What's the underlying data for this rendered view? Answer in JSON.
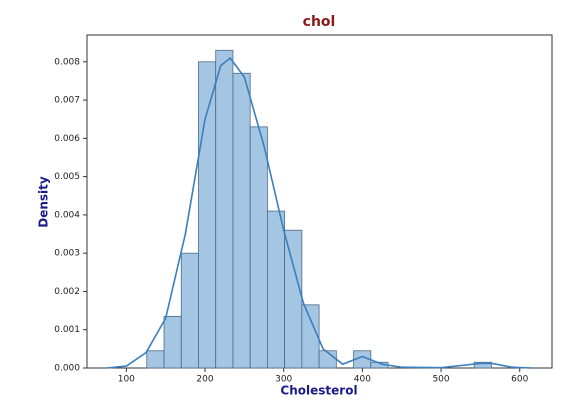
{
  "chart_data": {
    "type": "histogram",
    "title": "chol",
    "xlabel": "Cholesterol",
    "ylabel": "Density",
    "bins": [
      126,
      147.9,
      169.8,
      191.7,
      213.6,
      235.5,
      257.4,
      279.3,
      301.2,
      323.1,
      345,
      366.9,
      388.8,
      410.7,
      432.6,
      454.5,
      476.4,
      498.3,
      520.2,
      542.1,
      564
    ],
    "values": [
      0.00045,
      0.00135,
      0.003,
      0.008,
      0.0083,
      0.0077,
      0.0063,
      0.0041,
      0.0036,
      0.00165,
      0.00045,
      0,
      0.00045,
      0.00015,
      0,
      0,
      0,
      0,
      0,
      0.00015
    ],
    "color": "#a5c6e2",
    "kde": {
      "color": "#3a7fc0",
      "x": [
        75,
        100,
        125,
        150,
        175,
        200,
        220,
        232,
        250,
        275,
        300,
        325,
        350,
        375,
        400,
        425,
        450,
        500,
        550,
        565,
        590,
        615
      ],
      "y": [
        0,
        5e-05,
        0.0004,
        0.0013,
        0.0035,
        0.0065,
        0.0079,
        0.0081,
        0.0076,
        0.0058,
        0.0036,
        0.0017,
        0.0005,
        0.0001,
        0.0003,
        0.0001,
        2e-05,
        1e-05,
        0.00012,
        0.00012,
        2e-05,
        0
      ]
    },
    "xlim": [
      50,
      641
    ],
    "ylim": [
      0,
      0.0087
    ],
    "xticks": [
      100,
      200,
      300,
      400,
      500,
      600
    ],
    "yticks": [
      {
        "value": 0,
        "label": "0.000"
      },
      {
        "value": 0.001,
        "label": "0.001"
      },
      {
        "value": 0.002,
        "label": "0.002"
      },
      {
        "value": 0.003,
        "label": "0.003"
      },
      {
        "value": 0.004,
        "label": "0.004"
      },
      {
        "value": 0.005,
        "label": "0.005"
      },
      {
        "value": 0.006,
        "label": "0.006"
      },
      {
        "value": 0.007,
        "label": "0.007"
      },
      {
        "value": 0.008,
        "label": "0.008"
      }
    ]
  }
}
